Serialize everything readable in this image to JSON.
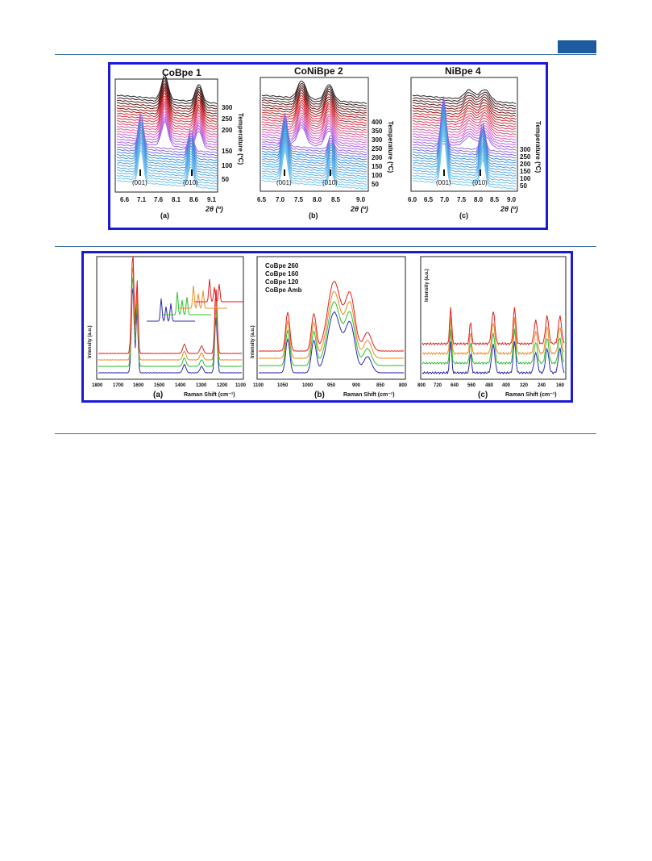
{
  "figure1": {
    "panels": [
      {
        "title": "CoBpe 1",
        "letter": "(a)",
        "xticks": [
          "6.6",
          "7.1",
          "7.6",
          "8.1",
          "8.6",
          "9.1"
        ],
        "yticks": [
          "300",
          "250",
          "200",
          "150",
          "100",
          "50"
        ],
        "peak_labels": [
          "(001)",
          "(010)"
        ],
        "xlabel": "2θ (º)",
        "ylabel": "Temperature (ºC)"
      },
      {
        "title": "CoNiBpe 2",
        "letter": "(b)",
        "xticks": [
          "6.5",
          "7.0",
          "7.5",
          "8.0",
          "8.5",
          "9.0"
        ],
        "yticks": [
          "400",
          "350",
          "300",
          "250",
          "200",
          "150",
          "100",
          "50"
        ],
        "peak_labels": [
          "(001)",
          "(010)"
        ],
        "xlabel": "2θ (º)",
        "ylabel": "Temperature (ºC)"
      },
      {
        "title": "NiBpe 4",
        "letter": "(c)",
        "xticks": [
          "6.0",
          "6.5",
          "7.0",
          "7.5",
          "8.0",
          "8.5",
          "9.0"
        ],
        "yticks": [
          "300",
          "250",
          "200",
          "150",
          "100",
          "50"
        ],
        "peak_labels": [
          "(001)",
          "(010)"
        ],
        "xlabel": "2θ (º)",
        "ylabel": "Temperature (ºC)"
      }
    ]
  },
  "figure2": {
    "panels": [
      {
        "letter": "(a)",
        "xticks": [
          "1800",
          "1700",
          "1600",
          "1500",
          "1400",
          "1300",
          "1200",
          "1100"
        ],
        "ylabel": "Intensity (a.u.)",
        "xlabel": "Raman Shift (cm⁻¹)"
      },
      {
        "letter": "(b)",
        "xticks": [
          "1100",
          "1050",
          "1000",
          "950",
          "900",
          "850",
          "800"
        ],
        "ylabel": "Intensity (a.u.)",
        "xlabel": "Raman Shift (cm⁻¹)"
      },
      {
        "letter": "(c)",
        "xticks": [
          "800",
          "720",
          "640",
          "560",
          "480",
          "400",
          "320",
          "240",
          "160"
        ],
        "ylabel": "Intensity (a.u.)",
        "xlabel": "Raman Shift (cm⁻¹)"
      }
    ],
    "legend": [
      {
        "label": "CoBpe 260",
        "color": "#e02020"
      },
      {
        "label": "CoBpe 160",
        "color": "#30c030"
      },
      {
        "label": "CoBpe 120",
        "color": "#f08a20"
      },
      {
        "label": "CoBpe Amb",
        "color": "#2a2ab0"
      }
    ]
  }
}
